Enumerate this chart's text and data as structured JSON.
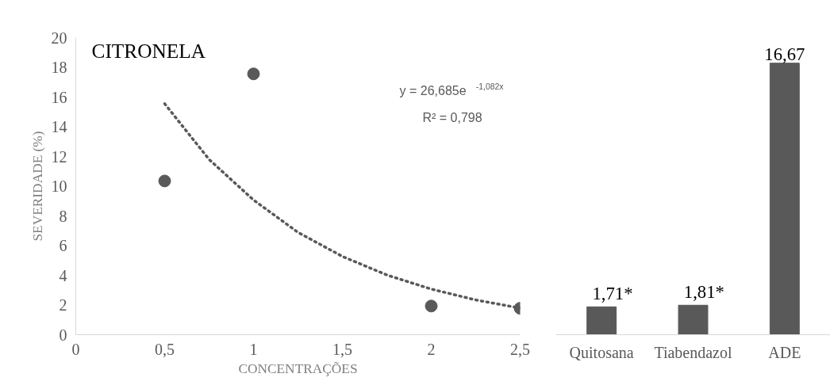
{
  "chart_data": [
    {
      "type": "scatter",
      "title": "CITRONELA",
      "xlabel": "CONCENTRAÇÕES",
      "ylabel": "SEVERIDADE (%)",
      "xlim": [
        0,
        2.5
      ],
      "ylim": [
        0,
        20
      ],
      "xticks": [
        0,
        {
          "value": 0.5,
          "label": "0,5"
        },
        1,
        {
          "value": 1.5,
          "label": "1,5"
        },
        2,
        {
          "value": 2.5,
          "label": "2,5"
        }
      ],
      "yticks": [
        0,
        2,
        4,
        6,
        8,
        10,
        12,
        14,
        16,
        18,
        20
      ],
      "grid": false,
      "annotations": [
        "y = 26,685e$^{-1,082x}$",
        "R² = 0,798"
      ],
      "series": [
        {
          "type": "scatter",
          "marker": "circle",
          "color": "#595959",
          "x": [
            0.5,
            1,
            2,
            2.5
          ],
          "values": [
            10.35,
            17.56,
            1.93,
            1.78
          ]
        },
        {
          "type": "line",
          "color": "#595959",
          "line_style": "dotted",
          "x": [
            0.5,
            0.75,
            1,
            1.25,
            1.5,
            1.75,
            2,
            2.25,
            2.5
          ],
          "values": [
            15.55,
            11.8,
            9.07,
            6.89,
            5.27,
            4.02,
            3.07,
            2.34,
            1.79
          ]
        }
      ]
    },
    {
      "type": "bar",
      "categories": [
        "Quitosana",
        "Tiabendazol",
        "ADE"
      ],
      "values": [
        1.71,
        1.81,
        16.67
      ],
      "color": "#595959",
      "value_labels": [
        "1,71*",
        "1,81*",
        "16,67"
      ],
      "tick_labels": "x",
      "grid": false
    }
  ]
}
